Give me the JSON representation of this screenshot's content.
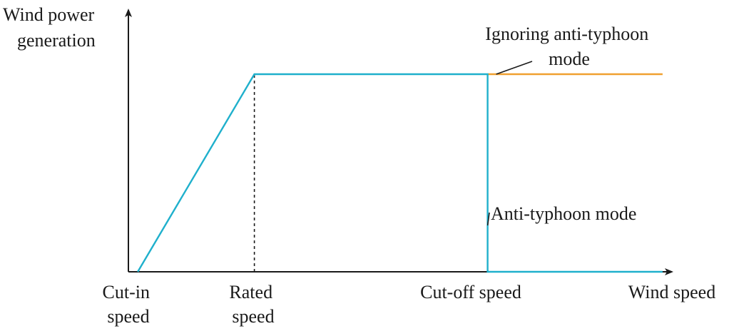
{
  "chart_data": {
    "type": "line",
    "ylabel": [
      "Wind power",
      "generation"
    ],
    "xlabel": "Wind speed",
    "x_ticks": [
      {
        "lines": [
          "Cut-in",
          "speed"
        ],
        "x": 1
      },
      {
        "lines": [
          "Rated",
          "speed"
        ],
        "x": 2
      },
      {
        "lines": [
          "Cut-off speed"
        ],
        "x": 4
      }
    ],
    "xlim": [
      0.92,
      5.58
    ],
    "ylim": [
      0,
      1.0
    ],
    "series": [
      {
        "name": "Anti-typhoon mode",
        "color": "#1fb0cc",
        "points": [
          [
            1,
            0
          ],
          [
            2,
            1
          ],
          [
            4,
            1
          ],
          [
            4,
            0
          ],
          [
            5.5,
            0
          ]
        ]
      },
      {
        "name": "Ignoring anti-typhoon mode",
        "color": "#f0a030",
        "points": [
          [
            4,
            1
          ],
          [
            5.5,
            1
          ]
        ]
      }
    ],
    "reference_lines": [
      {
        "name": "rated-speed-dashed-line",
        "x": 2,
        "style": "dashed"
      }
    ],
    "annotations": [
      {
        "series": "Ignoring anti-typhoon mode",
        "lines": [
          "Ignoring anti-typhoon",
          "mode"
        ]
      },
      {
        "series": "Anti-typhoon mode",
        "lines": [
          "Anti-typhoon mode"
        ]
      }
    ]
  }
}
